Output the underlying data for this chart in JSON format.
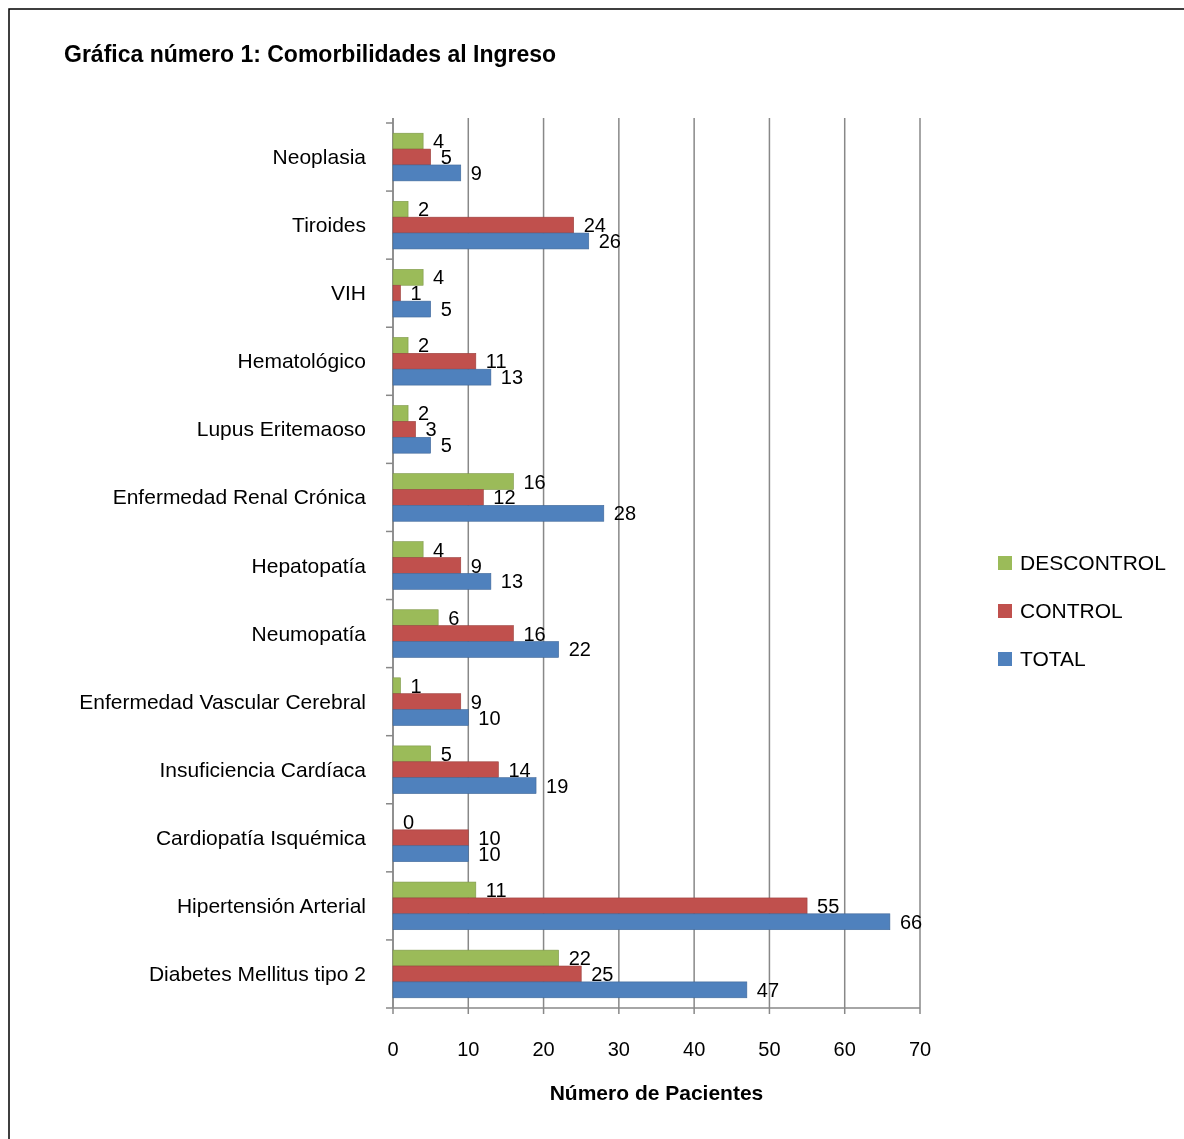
{
  "chart_data": {
    "type": "bar",
    "orientation": "horizontal",
    "title": "Gráfica número 1: Comorbilidades  al Ingreso",
    "xlabel": "Número de Pacientes",
    "categories": [
      "Neoplasia",
      "Tiroides",
      "VIH",
      "Hematológico",
      "Lupus Eritemaoso",
      "Enfermedad Renal Crónica",
      "Hepatopatía",
      "Neumopatía",
      "Enfermedad Vascular Cerebral",
      "Insuficiencia Cardíaca",
      "Cardiopatía Isquémica ",
      "Hipertensión Arterial",
      "Diabetes Mellitus tipo 2"
    ],
    "series": [
      {
        "name": "DESCONTROL",
        "color": "#9bbb59",
        "values": [
          4,
          2,
          4,
          2,
          2,
          16,
          4,
          6,
          1,
          5,
          0,
          11,
          22
        ]
      },
      {
        "name": "CONTROL",
        "color": "#c0504d",
        "values": [
          5,
          24,
          1,
          11,
          3,
          12,
          9,
          16,
          9,
          14,
          10,
          55,
          25
        ]
      },
      {
        "name": "TOTAL",
        "color": "#4f81bd",
        "values": [
          9,
          26,
          5,
          13,
          5,
          28,
          13,
          22,
          10,
          19,
          10,
          66,
          47
        ]
      }
    ],
    "xlim": [
      0,
      70
    ],
    "xticks": [
      0,
      10,
      20,
      30,
      40,
      50,
      60,
      70
    ],
    "grid": "x",
    "legend": "right",
    "data_labels": true
  }
}
